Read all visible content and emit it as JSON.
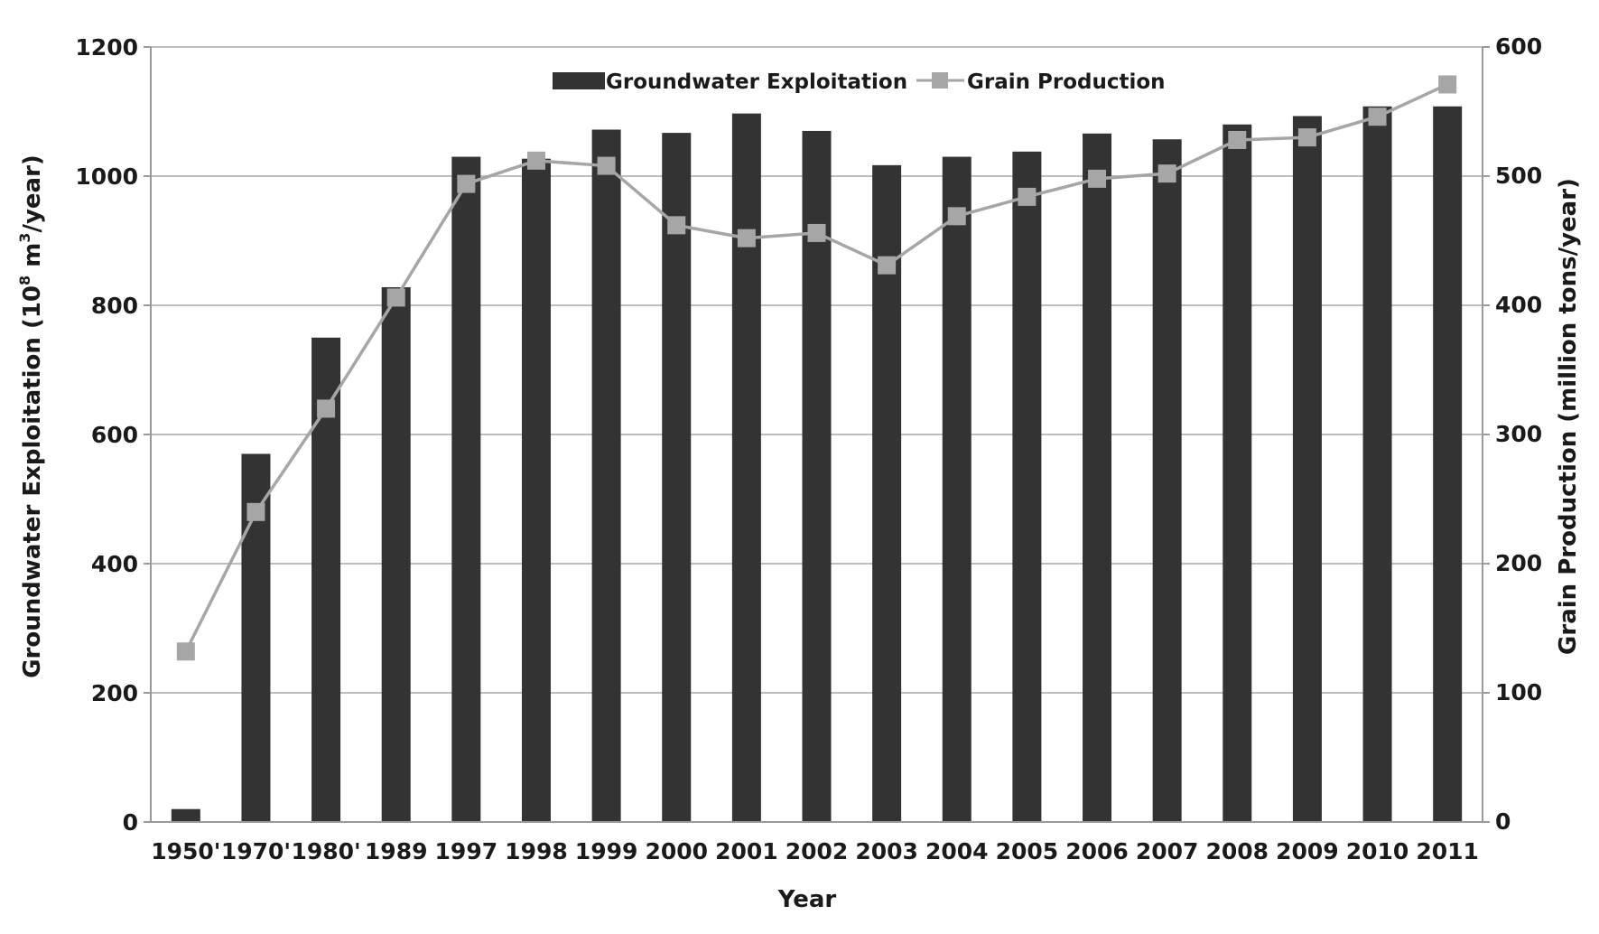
{
  "chart_data": {
    "type": "bar",
    "xlabel": "Year",
    "ylabel": "Groundwater Exploitation (10",
    "ylabel_sup": "8",
    "ylabel_unit": " m",
    "ylabel_unit_sup": "3",
    "ylabel_tail": "/year)",
    "y2label": "Grain Production  (million tons/year)",
    "categories": [
      "1950'",
      "1970'",
      "1980'",
      "1989",
      "1997",
      "1998",
      "1999",
      "2000",
      "2001",
      "2002",
      "2003",
      "2004",
      "2005",
      "2006",
      "2007",
      "2008",
      "2009",
      "2010",
      "2011"
    ],
    "ylim": [
      0,
      1200
    ],
    "y2lim": [
      0,
      600
    ],
    "yticks": [
      "0",
      "200",
      "400",
      "600",
      "800",
      "1000",
      "1200"
    ],
    "y2ticks": [
      "0",
      "100",
      "200",
      "300",
      "400",
      "500",
      "600"
    ],
    "grid": true,
    "legend_position": "top-center",
    "series": [
      {
        "name": "Groundwater Exploitation",
        "type": "bar",
        "axis": "left",
        "color": "#333333",
        "values": [
          20,
          570,
          750,
          828,
          1030,
          1027,
          1072,
          1067,
          1097,
          1070,
          1017,
          1030,
          1038,
          1066,
          1057,
          1080,
          1093,
          1108,
          1108
        ]
      },
      {
        "name": "Grain Production",
        "type": "line",
        "axis": "right",
        "color": "#a6a6a6",
        "values": [
          132,
          240,
          320,
          406,
          494,
          512,
          508,
          462,
          452,
          456,
          431,
          469,
          484,
          498,
          502,
          528,
          530,
          546,
          571
        ]
      }
    ]
  }
}
